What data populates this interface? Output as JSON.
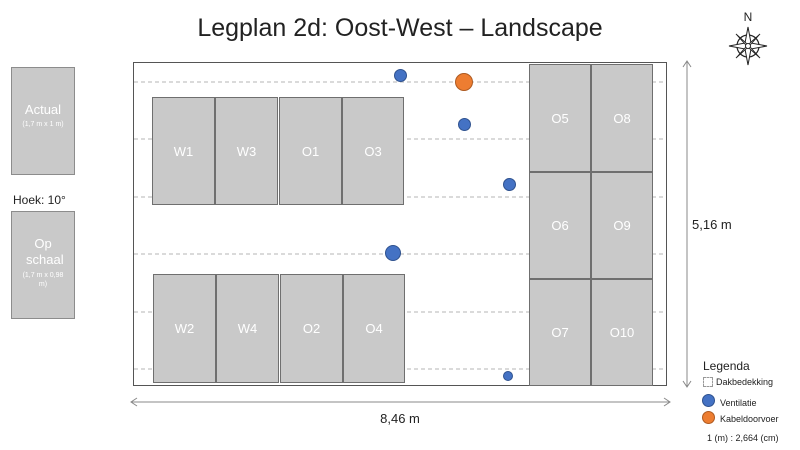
{
  "title": "Legplan 2d: Oost-West – Landscape",
  "compass": {
    "label": "N"
  },
  "side": {
    "actual": {
      "label": "Actual",
      "size": "(1,7 m  x 1 m)"
    },
    "angle": "Hoek: 10°",
    "scaled": {
      "label": "Op schaal",
      "size": "(1,7 m x 0,98 m)"
    }
  },
  "panels": [
    "W1",
    "W3",
    "O1",
    "O3",
    "W2",
    "W4",
    "O2",
    "O4",
    "O5",
    "O8",
    "O6",
    "O9",
    "O7",
    "O10"
  ],
  "dimensions": {
    "width": "8,46 m",
    "height": "5,16 m"
  },
  "legend": {
    "title": "Legenda",
    "roof": "Dakbedekking",
    "ventilation": "Ventilatie",
    "cable": "Kabeldoorvoer",
    "scale": "1 (m) : 2,664 (cm)"
  },
  "colors": {
    "ventilation": "#4472c4",
    "cable": "#ed7d31",
    "panel": "#c9c9c9"
  }
}
